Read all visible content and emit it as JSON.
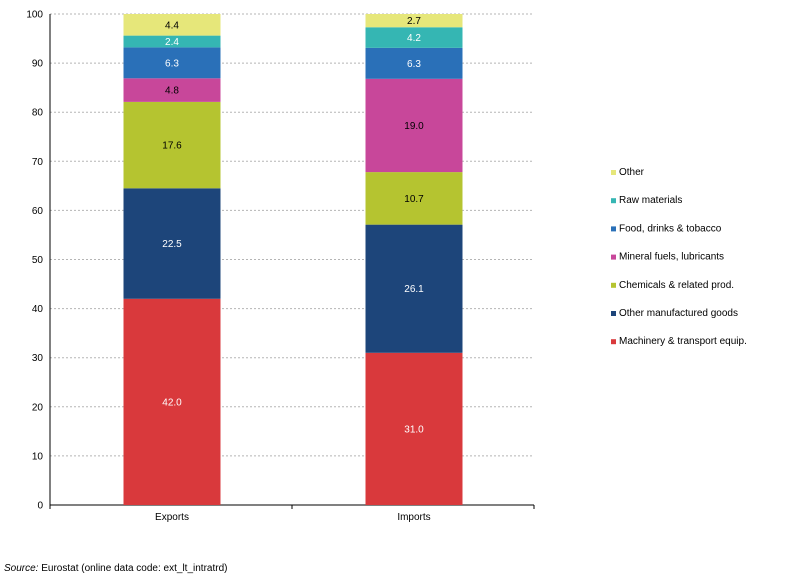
{
  "chart_data": {
    "type": "bar",
    "stacked": true,
    "categories": [
      "Exports",
      "Imports"
    ],
    "series": [
      {
        "name": "Machinery & transport equip.",
        "color": "#d9393c",
        "label_color": "#ffffff",
        "values": [
          42.0,
          31.0
        ],
        "labels": [
          "42.0",
          "31.0"
        ]
      },
      {
        "name": "Other manufactured goods",
        "color": "#1d457a",
        "label_color": "#ffffff",
        "values": [
          22.5,
          26.1
        ],
        "labels": [
          "22.5",
          "26.1"
        ]
      },
      {
        "name": "Chemicals & related prod.",
        "color": "#b5c430",
        "label_color": "#000000",
        "values": [
          17.6,
          10.7
        ],
        "labels": [
          "17.6",
          "10.7"
        ]
      },
      {
        "name": "Mineral fuels, lubricants",
        "color": "#c8479a",
        "label_color": "#000000",
        "values": [
          4.8,
          19.0
        ],
        "labels": [
          "4.8",
          "19.0"
        ]
      },
      {
        "name": "Food, drinks & tobacco",
        "color": "#2a70b8",
        "label_color": "#ffffff",
        "values": [
          6.3,
          6.3
        ],
        "labels": [
          "6.3",
          "6.3"
        ]
      },
      {
        "name": "Raw materials",
        "color": "#35b6b3",
        "label_color": "#ffffff",
        "values": [
          2.4,
          4.2
        ],
        "labels": [
          "2.4",
          "4.2"
        ]
      },
      {
        "name": "Other",
        "color": "#e6e77a",
        "label_color": "#000000",
        "values": [
          4.4,
          2.7
        ],
        "labels": [
          "4.4",
          "2.7"
        ]
      }
    ],
    "y_ticks": [
      "0",
      "10",
      "20",
      "30",
      "40",
      "50",
      "60",
      "70",
      "80",
      "90",
      "100"
    ],
    "ylim": [
      0,
      100
    ],
    "grid": true,
    "grid_style": "dashed",
    "legend_position": "right",
    "legend_order": "reverse",
    "title": "",
    "xlabel": "",
    "ylabel": ""
  },
  "source": {
    "prefix": "Source:",
    "text": " Eurostat (online data code: ext_lt_intratrd)"
  }
}
